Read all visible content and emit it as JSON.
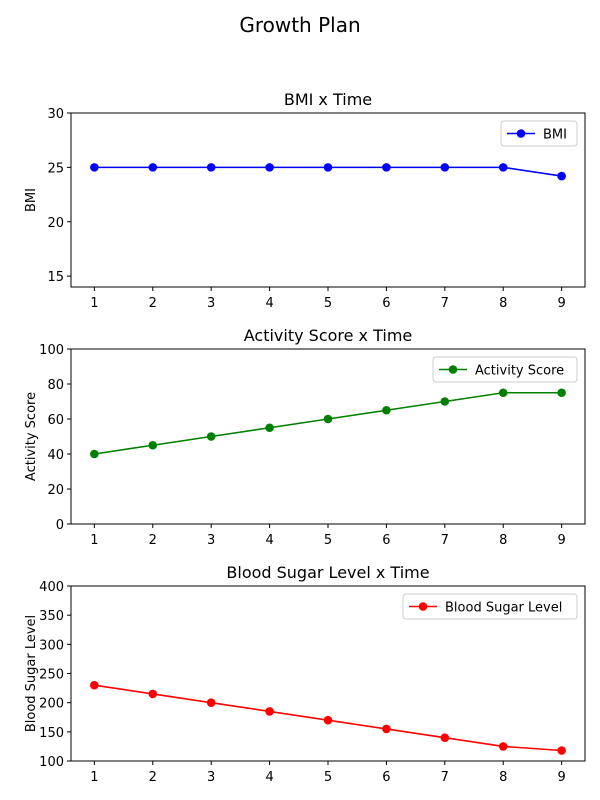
{
  "figure": {
    "suptitle": "Growth Plan"
  },
  "chart_data": [
    {
      "type": "line",
      "title": "BMI x Time",
      "xlabel": "",
      "ylabel": "BMI",
      "x": [
        1,
        2,
        3,
        4,
        5,
        6,
        7,
        8,
        9
      ],
      "xlim": [
        0.6,
        9.4
      ],
      "ylim": [
        14,
        30
      ],
      "yticks": [
        15,
        20,
        25,
        30
      ],
      "legend_position": "upper right",
      "grid": false,
      "series": [
        {
          "name": "BMI",
          "color": "#0000ff",
          "marker": "circle",
          "values": [
            25,
            25,
            25,
            25,
            25,
            25,
            25,
            25,
            24.2
          ]
        }
      ]
    },
    {
      "type": "line",
      "title": "Activity Score x Time",
      "xlabel": "",
      "ylabel": "Activity Score",
      "x": [
        1,
        2,
        3,
        4,
        5,
        6,
        7,
        8,
        9
      ],
      "xlim": [
        0.6,
        9.4
      ],
      "ylim": [
        0,
        100
      ],
      "yticks": [
        0,
        20,
        40,
        60,
        80,
        100
      ],
      "legend_position": "upper right",
      "grid": false,
      "series": [
        {
          "name": "Activity Score",
          "color": "#008000",
          "marker": "circle",
          "values": [
            40,
            45,
            50,
            55,
            60,
            65,
            70,
            75,
            75
          ]
        }
      ]
    },
    {
      "type": "line",
      "title": "Blood Sugar Level x Time",
      "xlabel": "",
      "ylabel": "Blood Sugar Level",
      "x": [
        1,
        2,
        3,
        4,
        5,
        6,
        7,
        8,
        9
      ],
      "xlim": [
        0.6,
        9.4
      ],
      "ylim": [
        100,
        400
      ],
      "yticks": [
        100,
        150,
        200,
        250,
        300,
        350,
        400
      ],
      "legend_position": "upper right",
      "grid": false,
      "series": [
        {
          "name": "Blood Sugar Level",
          "color": "#ff0000",
          "marker": "circle",
          "values": [
            230,
            215,
            200,
            185,
            170,
            155,
            140,
            125,
            118
          ]
        }
      ]
    }
  ]
}
